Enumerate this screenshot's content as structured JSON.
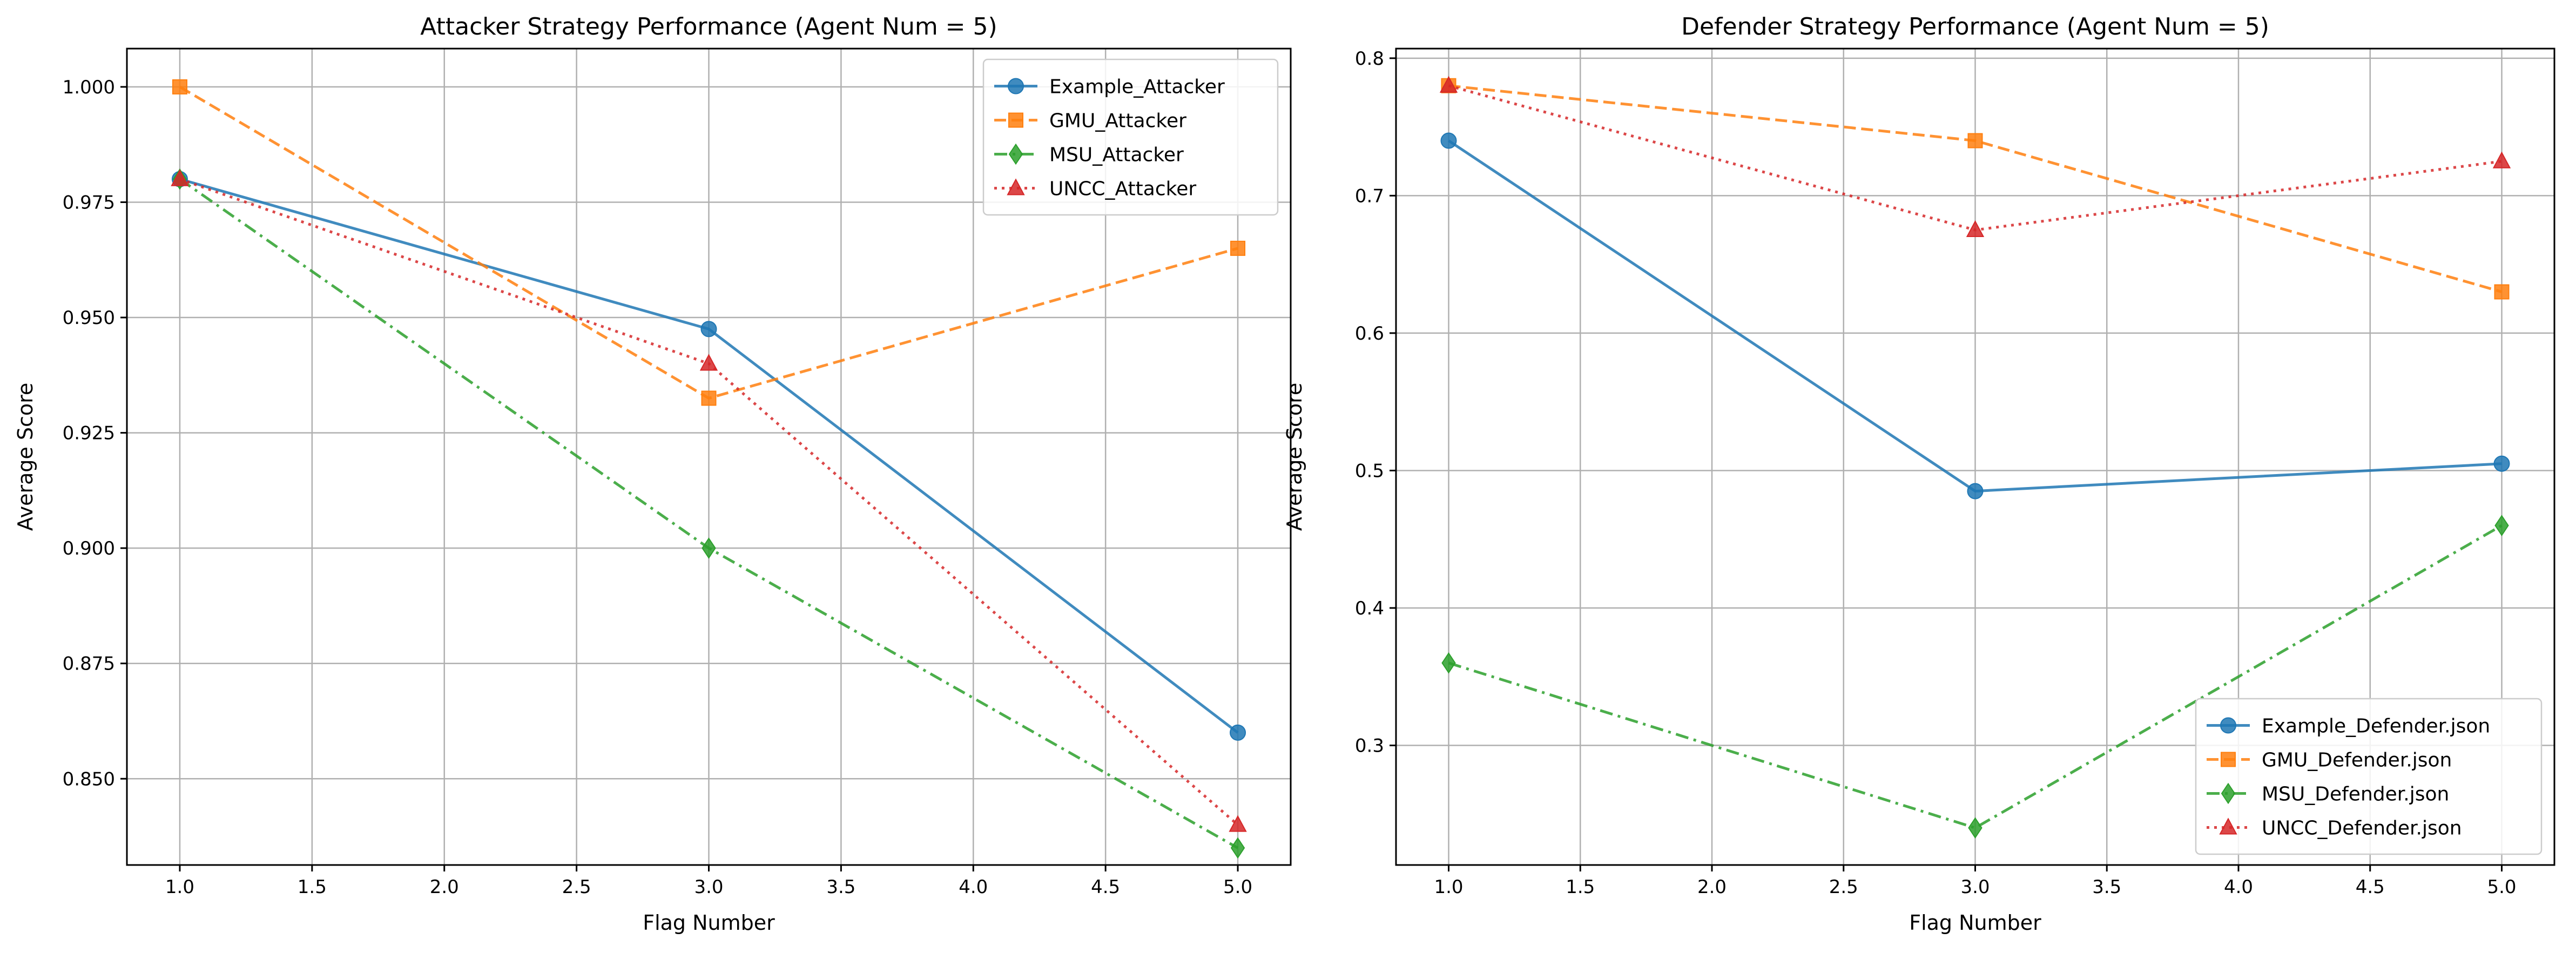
{
  "chart_data": [
    {
      "type": "line",
      "title": "Attacker Strategy Performance (Agent Num = 5)",
      "xlabel": "Flag Number",
      "ylabel": "Average Score",
      "xlim": [
        0.8,
        5.2
      ],
      "ylim": [
        0.8313,
        1.0083
      ],
      "grid": true,
      "legend_position": "top-right",
      "xticks": [
        1.0,
        1.5,
        2.0,
        2.5,
        3.0,
        3.5,
        4.0,
        4.5,
        5.0
      ],
      "xtick_labels": [
        "1.0",
        "1.5",
        "2.0",
        "2.5",
        "3.0",
        "3.5",
        "4.0",
        "4.5",
        "5.0"
      ],
      "yticks": [
        0.85,
        0.875,
        0.9,
        0.925,
        0.95,
        0.975,
        1.0
      ],
      "ytick_labels": [
        "0.850",
        "0.875",
        "0.900",
        "0.925",
        "0.950",
        "0.975",
        "1.000"
      ],
      "x": [
        1,
        3,
        5
      ],
      "series": [
        {
          "name": "Example_Attacker",
          "values": [
            0.98,
            0.9475,
            0.86
          ],
          "color": "#1f77b4",
          "marker": "circle",
          "dash": "solid"
        },
        {
          "name": "GMU_Attacker",
          "values": [
            1.0,
            0.9325,
            0.965
          ],
          "color": "#ff7f0e",
          "marker": "square",
          "dash": "dashed"
        },
        {
          "name": "MSU_Attacker",
          "values": [
            0.98,
            0.9,
            0.835
          ],
          "color": "#2ca02c",
          "marker": "diamond",
          "dash": "dashdot"
        },
        {
          "name": "UNCC_Attacker",
          "values": [
            0.98,
            0.94,
            0.84
          ],
          "color": "#d62728",
          "marker": "triangle",
          "dash": "dotted"
        }
      ]
    },
    {
      "type": "line",
      "title": "Defender Strategy Performance (Agent Num = 5)",
      "xlabel": "Flag Number",
      "ylabel": "Average Score",
      "xlim": [
        0.8,
        5.2
      ],
      "ylim": [
        0.213,
        0.807
      ],
      "grid": true,
      "legend_position": "bottom-right",
      "xticks": [
        1.0,
        1.5,
        2.0,
        2.5,
        3.0,
        3.5,
        4.0,
        4.5,
        5.0
      ],
      "xtick_labels": [
        "1.0",
        "1.5",
        "2.0",
        "2.5",
        "3.0",
        "3.5",
        "4.0",
        "4.5",
        "5.0"
      ],
      "yticks": [
        0.3,
        0.4,
        0.5,
        0.6,
        0.7,
        0.8
      ],
      "ytick_labels": [
        "0.3",
        "0.4",
        "0.5",
        "0.6",
        "0.7",
        "0.8"
      ],
      "x": [
        1,
        3,
        5
      ],
      "series": [
        {
          "name": "Example_Defender.json",
          "values": [
            0.74,
            0.485,
            0.505
          ],
          "color": "#1f77b4",
          "marker": "circle",
          "dash": "solid"
        },
        {
          "name": "GMU_Defender.json",
          "values": [
            0.78,
            0.74,
            0.63
          ],
          "color": "#ff7f0e",
          "marker": "square",
          "dash": "dashed"
        },
        {
          "name": "MSU_Defender.json",
          "values": [
            0.36,
            0.24,
            0.46
          ],
          "color": "#2ca02c",
          "marker": "diamond",
          "dash": "dashdot"
        },
        {
          "name": "UNCC_Defender.json",
          "values": [
            0.78,
            0.675,
            0.725
          ],
          "color": "#d62728",
          "marker": "triangle",
          "dash": "dotted"
        }
      ]
    }
  ]
}
